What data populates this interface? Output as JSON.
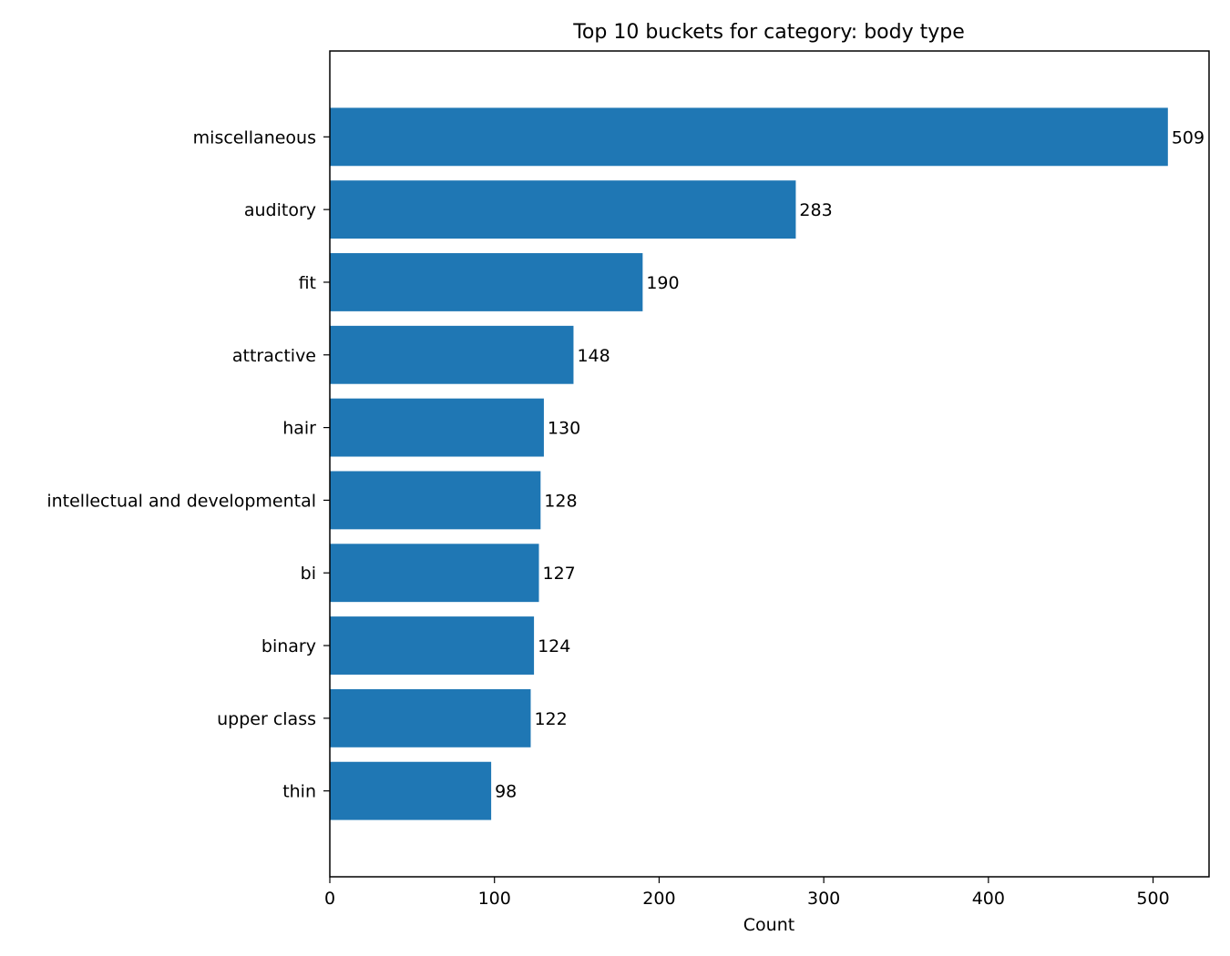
{
  "chart_data": {
    "type": "bar",
    "orientation": "horizontal",
    "title": "Top 10 buckets for category: body type",
    "xlabel": "Count",
    "ylabel": "",
    "categories": [
      "miscellaneous",
      "auditory",
      "fit",
      "attractive",
      "hair",
      "intellectual and developmental",
      "bi",
      "binary",
      "upper class",
      "thin"
    ],
    "values": [
      509,
      283,
      190,
      148,
      130,
      128,
      127,
      124,
      122,
      98
    ],
    "xlim": [
      0,
      534
    ],
    "xticks": [
      0,
      100,
      200,
      300,
      400,
      500
    ],
    "grid": false,
    "legend": "none",
    "bar_color": "#1f77b4",
    "value_labels": true
  }
}
